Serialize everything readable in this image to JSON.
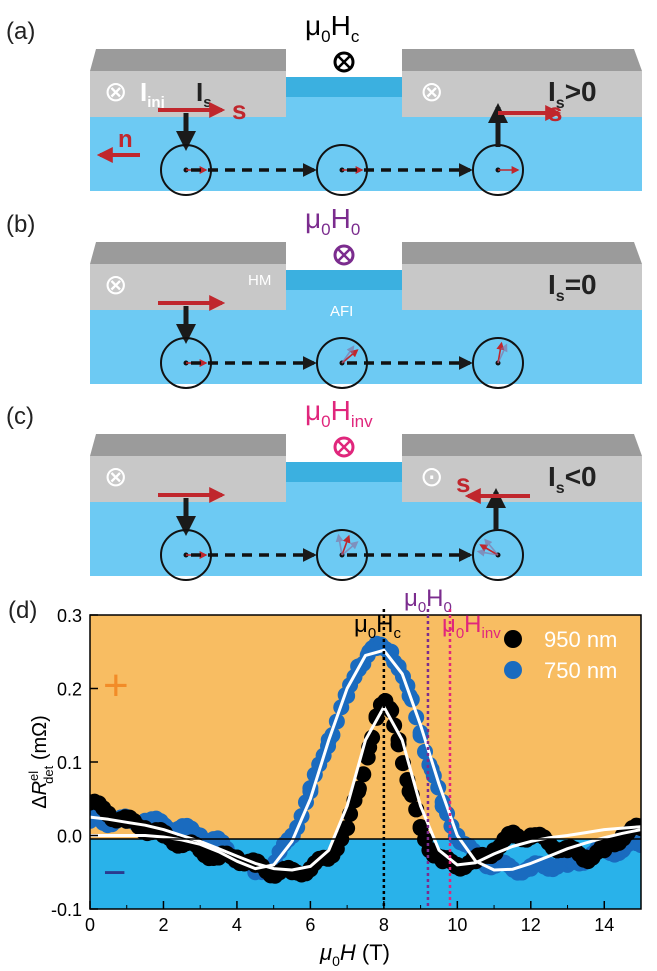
{
  "colors": {
    "metal_top": "#9b9b9b",
    "metal_front": "#c8c8c8",
    "afi_top": "#3bb0e0",
    "afi_front": "#6dcaf3",
    "arrow_red": "#c0272d",
    "arrow_black": "#1a1a1a",
    "purple": "#7b2c8e",
    "magenta": "#e0267c",
    "plot_bg_pos": "#f8bd62",
    "plot_bg_neg": "#29b2ea",
    "series_950": "#000000",
    "series_750": "#1a6bbf",
    "plus_sign": "#f28c28",
    "minus_sign": "#2a3a8f"
  },
  "panels": [
    {
      "label": "(a)",
      "field": {
        "mu": "μ",
        "sub0": "0",
        "H": "H",
        "sub": "c"
      },
      "field_color": "black",
      "inj_symbol": "⊗",
      "inj_label": "I",
      "inj_sub": "inj",
      "is_label": "I",
      "is_sub": "s",
      "s_label": "s",
      "n_label": "n",
      "right_label": "I",
      "right_sub": "s",
      "right_rel": ">0",
      "right_symbol": "⊗",
      "right_s": "s"
    },
    {
      "label": "(b)",
      "field": {
        "mu": "μ",
        "sub0": "0",
        "H": "H",
        "sub": "0"
      },
      "field_color": "purple",
      "inj_symbol": "⊗",
      "hm_label": "HM",
      "afi_label": "AFI",
      "right_label": "I",
      "right_sub": "s",
      "right_rel": "=0"
    },
    {
      "label": "(c)",
      "field": {
        "mu": "μ",
        "sub0": "0",
        "H": "H",
        "sub": "inv"
      },
      "field_color": "magenta",
      "inj_symbol": "⊗",
      "right_symbol": "⊙",
      "right_s": "s",
      "right_label": "I",
      "right_sub": "s",
      "right_rel": "<0"
    }
  ],
  "plot": {
    "label": "(d)",
    "ylabel": {
      "delta": "Δ",
      "R": "R",
      "sup": "el",
      "sub": "det",
      "unit": " (mΩ)"
    },
    "xlabel": {
      "mu": "μ",
      "sub0": "0",
      "H": "H",
      "unit": " (T)"
    },
    "plus_sign": "+",
    "minus_sign": "−",
    "markers": [
      {
        "mu": "μ",
        "sub0": "0",
        "H": "H",
        "sub": "c"
      },
      {
        "mu": "μ",
        "sub0": "0",
        "H": "H",
        "sub": "0"
      },
      {
        "mu": "μ",
        "sub0": "0",
        "H": "H",
        "sub": "inv"
      }
    ]
  },
  "chart_data": {
    "type": "scatter",
    "xlabel": "μ0H (T)",
    "ylabel": "ΔR^el_det (mΩ)",
    "xlim": [
      0,
      15
    ],
    "ylim": [
      -0.1,
      0.3
    ],
    "x_ticks": [
      0,
      2,
      4,
      6,
      8,
      10,
      12,
      14
    ],
    "y_ticks": [
      -0.1,
      0.0,
      0.1,
      0.2,
      0.3
    ],
    "y_tick_labels": [
      "-0.1",
      "0.0",
      "0.1",
      "0.2",
      "0.3"
    ],
    "vlines": [
      {
        "x": 8.0,
        "color": "#000000"
      },
      {
        "x": 9.2,
        "color": "#7b2c8e"
      },
      {
        "x": 9.8,
        "color": "#e0267c"
      }
    ],
    "legend": {
      "placement": "top-right"
    },
    "series": [
      {
        "name": "950 nm",
        "color": "#000000",
        "x": [
          0.0,
          0.5,
          1.0,
          1.5,
          2.0,
          2.5,
          3.0,
          3.5,
          4.0,
          4.5,
          5.0,
          5.5,
          6.0,
          6.5,
          7.0,
          7.3,
          7.6,
          7.8,
          8.0,
          8.2,
          8.4,
          8.7,
          9.0,
          9.3,
          9.6,
          10.0,
          10.5,
          11.0,
          11.5,
          12.0,
          12.5,
          13.0,
          13.5,
          14.0,
          14.5,
          15.0
        ],
        "y": [
          0.045,
          0.03,
          0.02,
          0.01,
          0.0,
          -0.01,
          -0.02,
          -0.03,
          -0.03,
          -0.04,
          -0.05,
          -0.05,
          -0.045,
          -0.03,
          0.01,
          0.06,
          0.12,
          0.16,
          0.18,
          0.17,
          0.13,
          0.06,
          0.01,
          -0.02,
          -0.035,
          -0.04,
          -0.035,
          -0.02,
          0.0,
          0.0,
          -0.01,
          -0.02,
          -0.03,
          -0.02,
          0.0,
          0.01
        ]
      },
      {
        "name": "750 nm",
        "color": "#1a6bbf",
        "x": [
          0.0,
          0.5,
          1.0,
          1.5,
          2.0,
          2.5,
          3.0,
          3.5,
          4.0,
          4.5,
          5.0,
          5.5,
          6.0,
          6.5,
          7.0,
          7.3,
          7.6,
          7.8,
          8.0,
          8.2,
          8.4,
          8.7,
          9.0,
          9.3,
          9.6,
          10.0,
          10.5,
          11.0,
          11.5,
          12.0,
          12.5,
          13.0,
          13.5,
          14.0,
          14.5,
          15.0
        ],
        "y": [
          0.02,
          0.02,
          0.02,
          0.02,
          0.015,
          0.01,
          0.0,
          -0.01,
          -0.03,
          -0.05,
          -0.04,
          0.0,
          0.06,
          0.13,
          0.19,
          0.23,
          0.25,
          0.255,
          0.255,
          0.25,
          0.23,
          0.19,
          0.14,
          0.09,
          0.04,
          0.0,
          -0.03,
          -0.04,
          -0.045,
          -0.045,
          -0.04,
          -0.04,
          -0.03,
          -0.02,
          -0.02,
          -0.01
        ]
      }
    ],
    "fits": [
      {
        "x": [
          0,
          0.5,
          1,
          1.5,
          2,
          2.5,
          3,
          3.5,
          4,
          4.5,
          5,
          5.5,
          6,
          6.5,
          7,
          7.5,
          8,
          8.5,
          9,
          9.5,
          10,
          10.5,
          11,
          11.5,
          12,
          12.5,
          13,
          13.5,
          14,
          14.5,
          15
        ],
        "y": [
          0.025,
          0.022,
          0.018,
          0.014,
          0.008,
          0.0,
          -0.008,
          -0.018,
          -0.028,
          -0.038,
          -0.045,
          -0.047,
          -0.042,
          -0.02,
          0.04,
          0.13,
          0.175,
          0.13,
          0.04,
          -0.02,
          -0.04,
          -0.037,
          -0.025,
          -0.015,
          -0.008,
          -0.003,
          0.0,
          0.004,
          0.008,
          0.01,
          0.012
        ]
      },
      {
        "x": [
          0,
          0.5,
          1,
          1.5,
          2,
          2.5,
          3,
          3.5,
          4,
          4.5,
          5,
          5.5,
          6,
          6.5,
          7,
          7.5,
          8,
          8.5,
          9,
          9.5,
          10,
          10.5,
          11,
          11.5,
          12,
          12.5,
          13,
          13.5,
          14,
          14.5,
          15
        ],
        "y": [
          0.0,
          0.0,
          0.0,
          0.0,
          -0.002,
          -0.006,
          -0.012,
          -0.022,
          -0.035,
          -0.045,
          -0.04,
          -0.008,
          0.05,
          0.13,
          0.2,
          0.245,
          0.252,
          0.22,
          0.15,
          0.07,
          0.0,
          -0.035,
          -0.047,
          -0.046,
          -0.038,
          -0.028,
          -0.018,
          -0.01,
          -0.003,
          0.003,
          0.008
        ]
      }
    ]
  }
}
